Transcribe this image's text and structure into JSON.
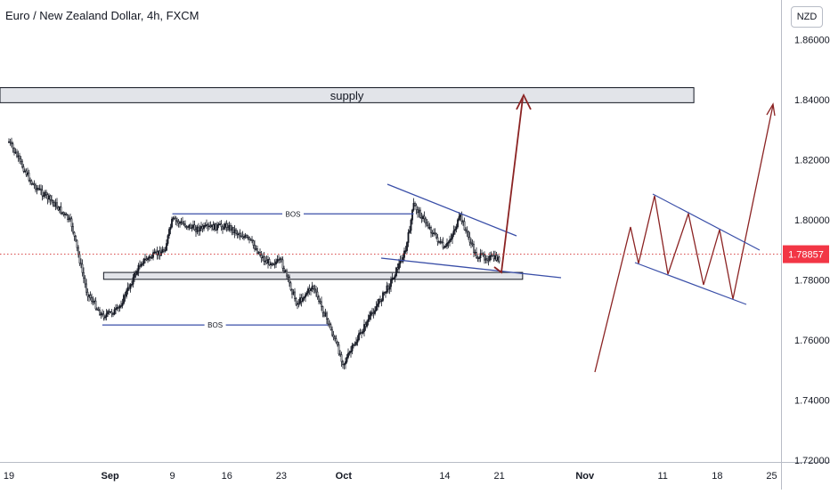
{
  "header": {
    "title": "Euro / New Zealand Dollar, 4h, FXCM",
    "currency": "NZD"
  },
  "price_label": "1.78857",
  "colors": {
    "candle": "#131722",
    "trendline": "#3a4fa8",
    "projection": "#8b2323",
    "zone_fill": "#e2e4e9",
    "zone_border": "#131722",
    "price_line": "#d32f2f",
    "price_label_bg": "#f23645"
  },
  "annotations": {
    "supply_label": "supply",
    "bos_upper": "BOS",
    "bos_lower": "BOS"
  },
  "chart_data": {
    "type": "candlestick",
    "title": "Euro / New Zealand Dollar, 4h, FXCM",
    "ylim": [
      1.72,
      1.87
    ],
    "y_ticks": [
      "1.86000",
      "1.84000",
      "1.82000",
      "1.80000",
      "1.78000",
      "1.76000",
      "1.74000",
      "1.72000"
    ],
    "x_ticks": [
      "19",
      "Sep",
      "9",
      "16",
      "23",
      "Oct",
      "14",
      "21",
      "Nov",
      "11",
      "18",
      "25"
    ],
    "current_price": 1.78857,
    "price_path": [
      {
        "date": "Aug 19",
        "price": 1.826
      },
      {
        "date": "Aug 22",
        "price": 1.812
      },
      {
        "date": "Aug 25",
        "price": 1.805
      },
      {
        "date": "Aug 27",
        "price": 1.799
      },
      {
        "date": "Aug 29",
        "price": 1.776
      },
      {
        "date": "Aug 31",
        "price": 1.768
      },
      {
        "date": "Sep 2",
        "price": 1.77
      },
      {
        "date": "Sep 5",
        "price": 1.786
      },
      {
        "date": "Sep 8",
        "price": 1.79
      },
      {
        "date": "Sep 9",
        "price": 1.8
      },
      {
        "date": "Sep 12",
        "price": 1.797
      },
      {
        "date": "Sep 16",
        "price": 1.798
      },
      {
        "date": "Sep 19",
        "price": 1.793
      },
      {
        "date": "Sep 21",
        "price": 1.786
      },
      {
        "date": "Sep 23",
        "price": 1.786
      },
      {
        "date": "Sep 25",
        "price": 1.772
      },
      {
        "date": "Sep 27",
        "price": 1.778
      },
      {
        "date": "Sep 29",
        "price": 1.766
      },
      {
        "date": "Oct 1",
        "price": 1.752
      },
      {
        "date": "Oct 4",
        "price": 1.766
      },
      {
        "date": "Oct 7",
        "price": 1.779
      },
      {
        "date": "Oct 9",
        "price": 1.79
      },
      {
        "date": "Oct 10",
        "price": 1.805
      },
      {
        "date": "Oct 14",
        "price": 1.79
      },
      {
        "date": "Oct 16",
        "price": 1.801
      },
      {
        "date": "Oct 18",
        "price": 1.788
      },
      {
        "date": "Oct 21",
        "price": 1.787
      }
    ],
    "zones": [
      {
        "label": "supply",
        "from": "Aug 19",
        "to": "Nov 15",
        "low": 1.839,
        "high": 1.844
      },
      {
        "label": "",
        "from": "Sep 2",
        "to": "Oct 24",
        "low": 1.7802,
        "high": 1.7825
      }
    ],
    "bos_levels": [
      {
        "label": "BOS",
        "price": 1.802,
        "from": "Sep 9",
        "to": "Oct 10"
      },
      {
        "label": "BOS",
        "price": 1.765,
        "from": "Aug 31",
        "to": "Sep 29"
      }
    ],
    "projected_move": {
      "from": {
        "date": "Oct 21",
        "price": 1.782
      },
      "to": {
        "date": "Oct 23",
        "price": 1.841
      }
    },
    "grid": false
  }
}
